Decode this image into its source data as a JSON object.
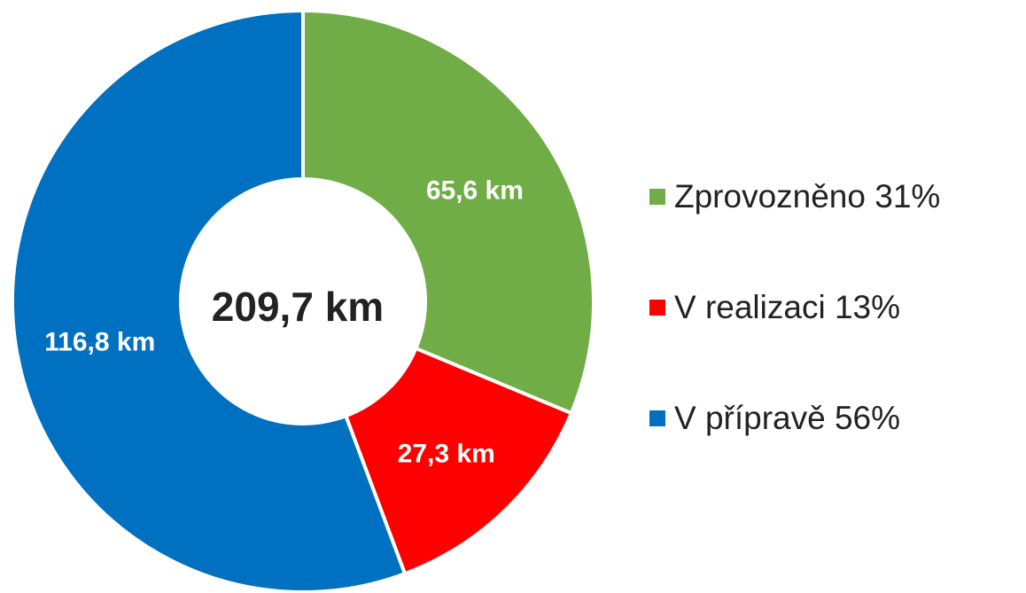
{
  "chart_data": {
    "type": "donut",
    "center_label": "209,7 km",
    "categories": [
      "Zprovozněno 31%",
      "V realizaci 13%",
      "V přípravě 56%"
    ],
    "values": [
      65.6,
      27.3,
      116.8
    ],
    "value_labels": [
      "65,6 km",
      "27,3 km",
      "116,8 km"
    ],
    "colors": [
      "#70ad47",
      "#ff0000",
      "#0070c0"
    ]
  }
}
